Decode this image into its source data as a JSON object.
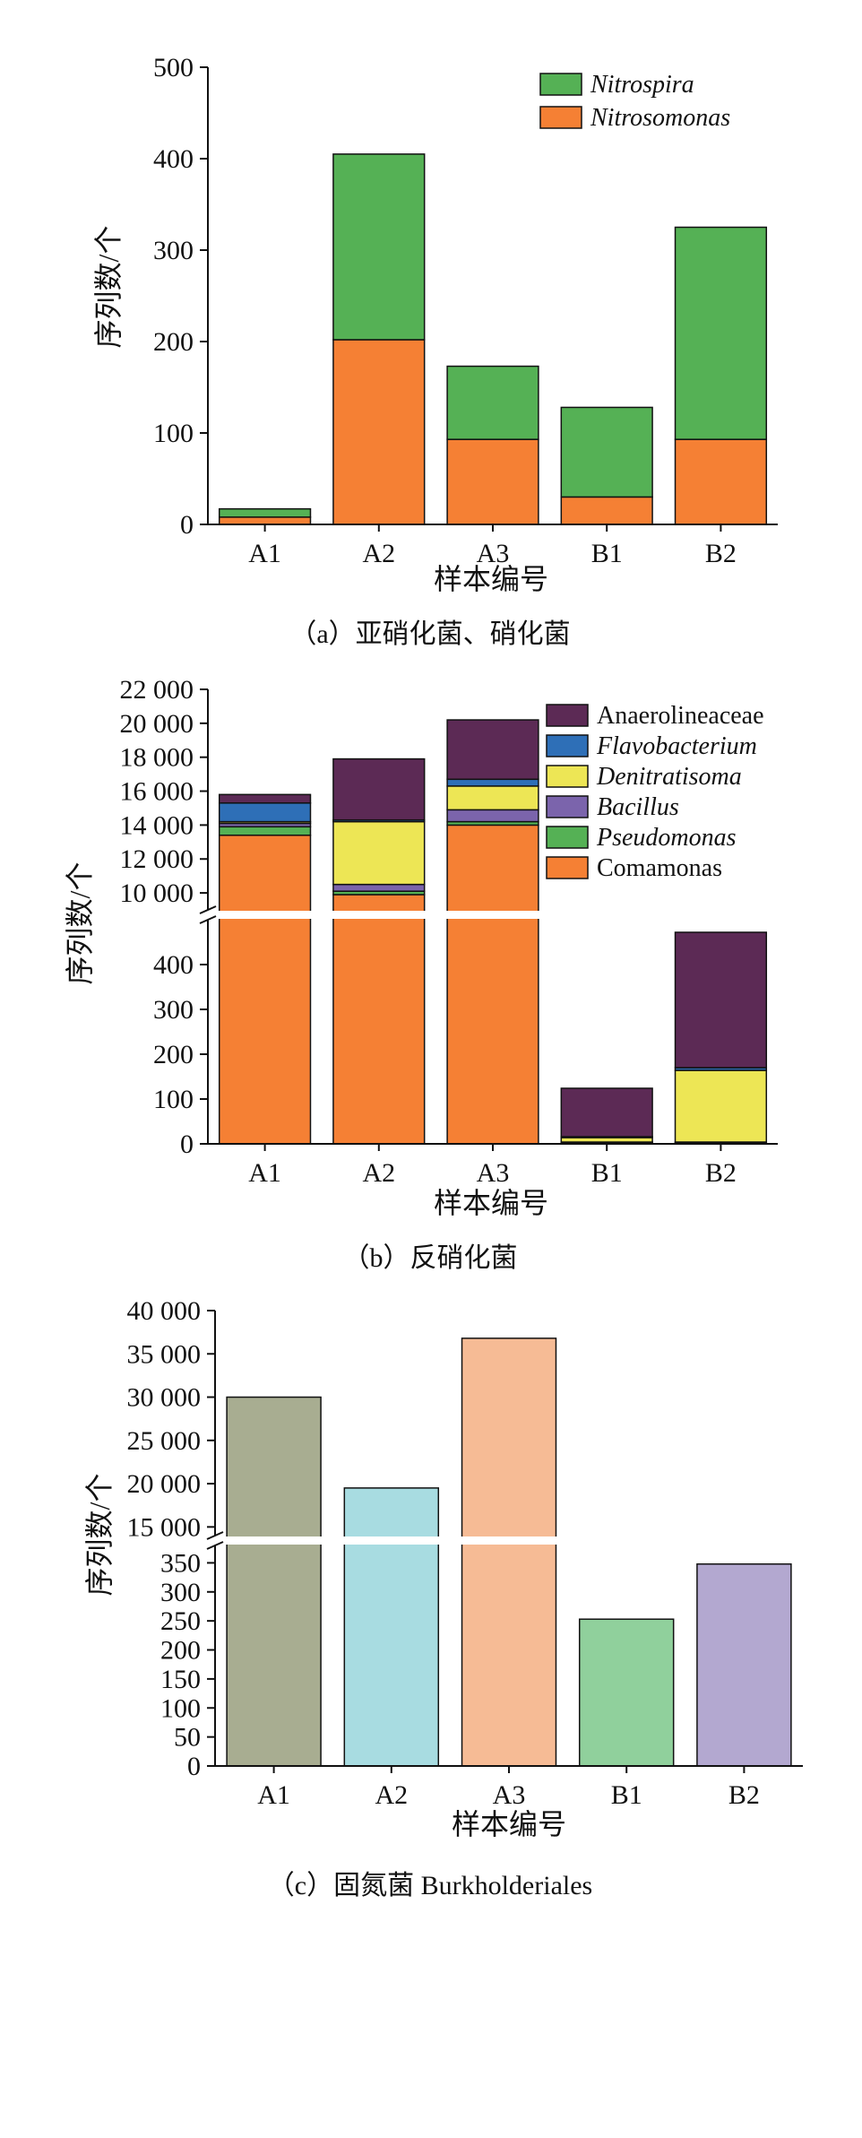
{
  "chart_data": [
    {
      "type": "bar",
      "stacked": true,
      "categories": [
        "A1",
        "A2",
        "A3",
        "B1",
        "B2"
      ],
      "series": [
        {
          "name": "Nitrosomonas",
          "italic": true,
          "color": "#F58034",
          "values": [
            8,
            202,
            93,
            30,
            93
          ]
        },
        {
          "name": "Nitrospira",
          "italic": true,
          "color": "#55B155",
          "values": [
            9,
            203,
            80,
            98,
            232
          ]
        }
      ],
      "legend_order": [
        "Nitrospira",
        "Nitrosomonas"
      ],
      "legend_position": "top-right",
      "ylim": [
        0,
        500
      ],
      "yticks": [
        "0",
        "100",
        "200",
        "300",
        "400",
        "500"
      ],
      "ytick_values": [
        0,
        100,
        200,
        300,
        400,
        500
      ],
      "xlabel": "样本编号",
      "ylabel": "序列数/个",
      "caption": "（a）亚硝化菌、硝化菌"
    },
    {
      "type": "bar",
      "stacked": true,
      "broken_axis": true,
      "categories": [
        "A1",
        "A2",
        "A3",
        "B1",
        "B2"
      ],
      "series": [
        {
          "name": "Comamonas",
          "italic": false,
          "color": "#F58034",
          "values": [
            13400,
            9900,
            14000,
            0,
            0
          ]
        },
        {
          "name": "Pseudomonas",
          "italic": true,
          "color": "#55B155",
          "values": [
            500,
            200,
            200,
            2,
            2
          ]
        },
        {
          "name": "Bacillus",
          "italic": true,
          "color": "#7B64AC",
          "values": [
            200,
            400,
            700,
            2,
            2
          ]
        },
        {
          "name": "Denitratisoma",
          "italic": true,
          "color": "#EDE655",
          "values": [
            100,
            3700,
            1400,
            10,
            160
          ]
        },
        {
          "name": "Flavobacterium",
          "italic": true,
          "color": "#2E6FB7",
          "values": [
            1100,
            100,
            400,
            2,
            6
          ]
        },
        {
          "name": "Anaerolineaceae",
          "italic": false,
          "color": "#5C2A55",
          "values": [
            500,
            3600,
            3500,
            108,
            302
          ]
        }
      ],
      "legend_order": [
        "Anaerolineaceae",
        "Flavobacterium",
        "Denitratisoma",
        "Bacillus",
        "Pseudomonas",
        "Comamonas"
      ],
      "legend_position": "top-right",
      "ylim_lower": [
        0,
        500
      ],
      "ylim_upper": [
        9000,
        22000
      ],
      "yticks_lower": [
        "0",
        "100",
        "200",
        "300",
        "400"
      ],
      "ytick_values_lower": [
        0,
        100,
        200,
        300,
        400
      ],
      "yticks_upper": [
        "10 000",
        "12 000",
        "14 000",
        "16 000",
        "18 000",
        "20 000",
        "22 000"
      ],
      "ytick_values_upper": [
        10000,
        12000,
        14000,
        16000,
        18000,
        20000,
        22000
      ],
      "xlabel": "样本编号",
      "ylabel": "序列数/个",
      "caption": "（b）反硝化菌"
    },
    {
      "type": "bar",
      "stacked": false,
      "broken_axis": true,
      "categories": [
        "A1",
        "A2",
        "A3",
        "B1",
        "B2"
      ],
      "values": [
        30000,
        19500,
        36800,
        253,
        348
      ],
      "colors": [
        "#A8AD91",
        "#A8DCE1",
        "#F6BB95",
        "#90D09C",
        "#B3A8D0"
      ],
      "ylim_lower": [
        0,
        380
      ],
      "ylim_upper": [
        14000,
        40000
      ],
      "yticks_lower": [
        "0",
        "50",
        "100",
        "150",
        "200",
        "250",
        "300",
        "350"
      ],
      "ytick_values_lower": [
        0,
        50,
        100,
        150,
        200,
        250,
        300,
        350
      ],
      "yticks_upper": [
        "15 000",
        "20 000",
        "25 000",
        "30 000",
        "35 000",
        "40 000"
      ],
      "ytick_values_upper": [
        15000,
        20000,
        25000,
        30000,
        35000,
        40000
      ],
      "xlabel": "样本编号",
      "ylabel": "序列数/个",
      "caption": "（c）固氮菌 Burkholderiales"
    }
  ]
}
